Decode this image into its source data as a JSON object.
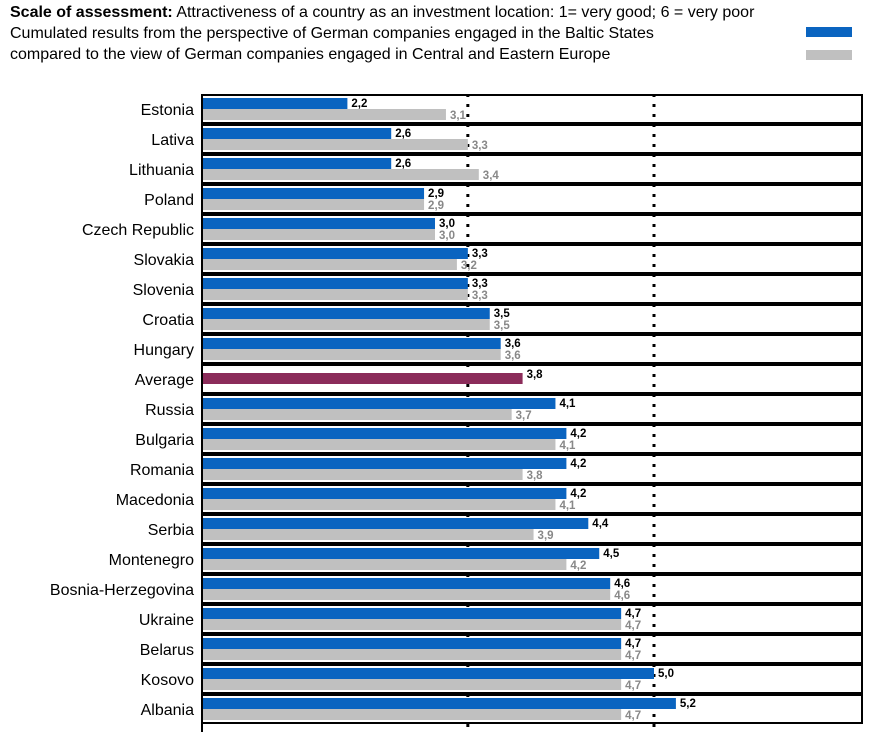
{
  "header": {
    "scale_bold": "Scale of assessment:",
    "scale_text": " Attractiveness of a country as an investment location:  1= very good; 6 = very poor",
    "line2": "Cumulated results from the perspective of German companies engaged in the Baltic States",
    "line3": "compared to the view of German companies engaged in Central and Eastern Europe"
  },
  "colors": {
    "baltic": "#0a64c0",
    "cee": "#c0c0c0",
    "average": "#8b2c5a",
    "cee_label": "#888888",
    "frame": "#000000"
  },
  "chart_data": {
    "type": "bar",
    "orientation": "horizontal",
    "xlim": [
      1,
      6
    ],
    "grid": "dotted vertical",
    "categories": [
      "Estonia",
      "Lativa",
      "Lithuania",
      "Poland",
      "Czech Republic",
      "Slovakia",
      "Slovenia",
      "Croatia",
      "Hungary",
      "Average",
      "Russia",
      "Bulgaria",
      "Romania",
      "Macedonia",
      "Serbia",
      "Montenegro",
      "Bosnia-Herzegovina",
      "Ukraine",
      "Belarus",
      "Kosovo",
      "Albania"
    ],
    "series": [
      {
        "values": [
          2.2,
          2.6,
          2.6,
          2.9,
          3.0,
          3.3,
          3.3,
          3.5,
          3.6,
          3.8,
          4.1,
          4.2,
          4.2,
          4.2,
          4.4,
          4.5,
          4.6,
          4.7,
          4.7,
          5.0,
          5.2
        ],
        "labels": [
          "2,2",
          "2,6",
          "2,6",
          "2,9",
          "3,0",
          "3,3",
          "3,3",
          "3,5",
          "3,6",
          "3,8",
          "4,1",
          "4,2",
          "4,2",
          "4,2",
          "4,4",
          "4,5",
          "4,6",
          "4,7",
          "4,7",
          "5,0",
          "5,2"
        ]
      },
      {
        "values": [
          3.1,
          3.3,
          3.4,
          2.9,
          3.0,
          3.2,
          3.3,
          3.5,
          3.6,
          null,
          3.7,
          4.1,
          3.8,
          4.1,
          3.9,
          4.2,
          4.6,
          4.7,
          4.7,
          4.7,
          4.7
        ],
        "labels": [
          "3,1",
          "3,3",
          "3,4",
          "2,9",
          "3,0",
          "3,2",
          "3,3",
          "3,5",
          "3,6",
          "",
          "3,7",
          "4,1",
          "3,8",
          "4,1",
          "3,9",
          "4,2",
          "4,6",
          "4,7",
          "4,7",
          "4,7",
          "4,7"
        ]
      }
    ]
  }
}
